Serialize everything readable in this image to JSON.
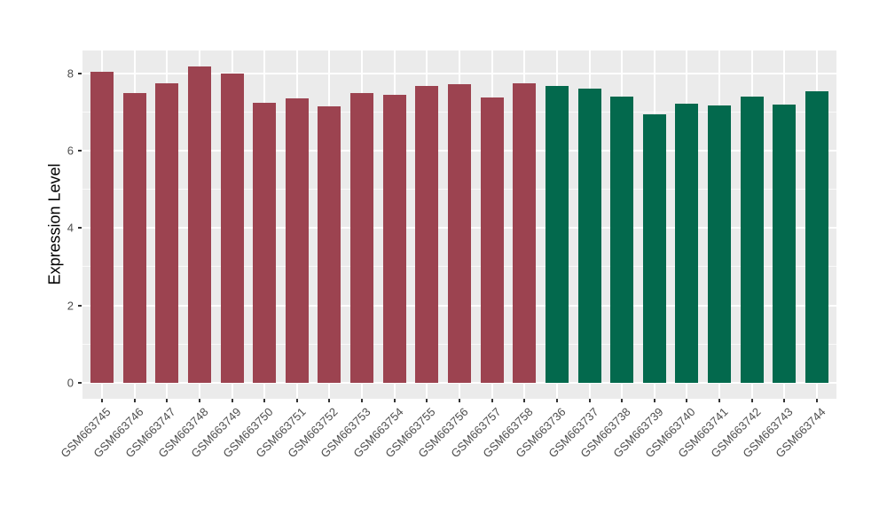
{
  "chart_data": {
    "type": "bar",
    "title": "",
    "xlabel": "",
    "ylabel": "Expression Level",
    "ylim": [
      0,
      8.6
    ],
    "yticks": [
      0,
      2,
      4,
      6,
      8
    ],
    "yticks_minor": [
      1,
      3,
      5,
      7
    ],
    "grid": true,
    "legend_position": "none",
    "panel_background": "#EBEBEB",
    "grid_color": "#FFFFFF",
    "axis_text_color": "#4D4D4D",
    "axis_title_color": "#000000",
    "tick_mark_color": "#333333",
    "categories": [
      "GSM663745",
      "GSM663746",
      "GSM663747",
      "GSM663748",
      "GSM663749",
      "GSM663750",
      "GSM663751",
      "GSM663752",
      "GSM663753",
      "GSM663754",
      "GSM663755",
      "GSM663756",
      "GSM663757",
      "GSM663758",
      "GSM663736",
      "GSM663737",
      "GSM663738",
      "GSM663739",
      "GSM663740",
      "GSM663741",
      "GSM663742",
      "GSM663743",
      "GSM663744"
    ],
    "values": [
      8.05,
      7.5,
      7.75,
      8.18,
      8.0,
      7.24,
      7.36,
      7.15,
      7.5,
      7.46,
      7.68,
      7.72,
      7.39,
      7.74,
      7.68,
      7.61,
      7.41,
      6.95,
      7.23,
      7.18,
      7.41,
      7.21,
      7.55
    ],
    "bar_colors": [
      "#9C4350",
      "#9C4350",
      "#9C4350",
      "#9C4350",
      "#9C4350",
      "#9C4350",
      "#9C4350",
      "#9C4350",
      "#9C4350",
      "#9C4350",
      "#9C4350",
      "#9C4350",
      "#9C4350",
      "#9C4350",
      "#03694D",
      "#03694D",
      "#03694D",
      "#03694D",
      "#03694D",
      "#03694D",
      "#03694D",
      "#03694D",
      "#03694D"
    ],
    "color_group_a": "#9C4350",
    "color_group_b": "#03694D"
  }
}
